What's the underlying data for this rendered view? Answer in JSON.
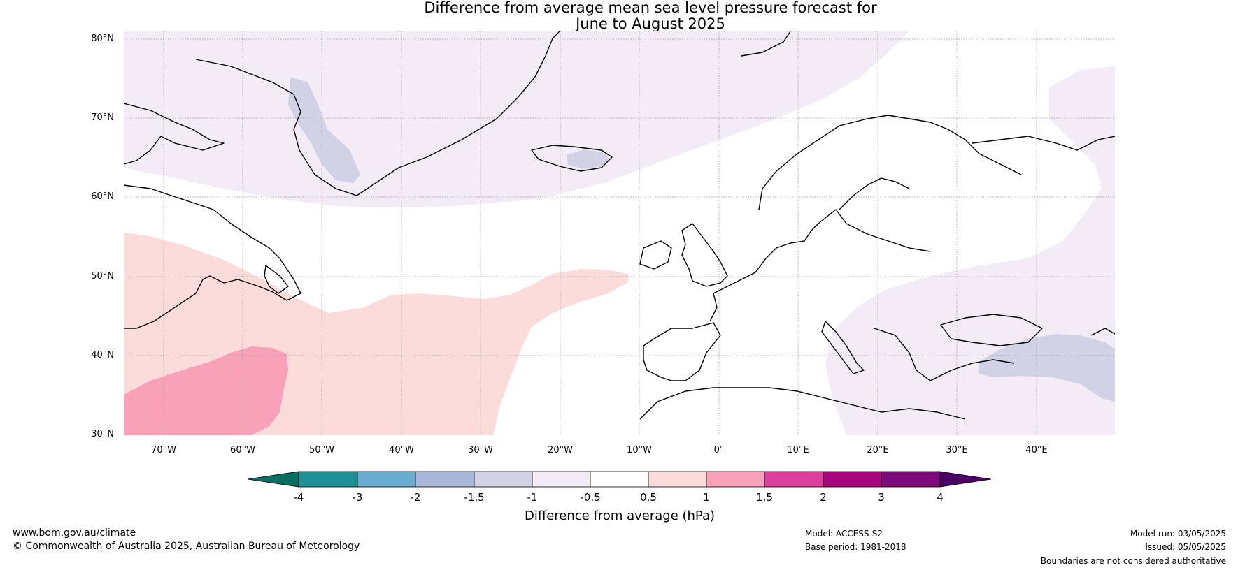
{
  "title_line1": "Difference from average mean sea level pressure forecast for",
  "title_line2": "June to August 2025",
  "lat_labels": [
    "80°N",
    "70°N",
    "60°N",
    "50°N",
    "40°N",
    "30°N"
  ],
  "lon_labels": [
    "70°W",
    "60°W",
    "50°W",
    "40°W",
    "30°W",
    "20°W",
    "10°W",
    "0°",
    "10°E",
    "20°E",
    "30°E",
    "40°E"
  ],
  "colorbar": {
    "label": "Difference from average (hPa)",
    "ticks": [
      "-4",
      "-3",
      "-2",
      "-1.5",
      "-1",
      "-0.5",
      "0.5",
      "1",
      "1.5",
      "2",
      "3",
      "4"
    ],
    "colors": [
      "#0b6e63",
      "#1e9096",
      "#6aabd1",
      "#a8b8d9",
      "#d1d2e6",
      "#f3ebf5",
      "#ffffff",
      "#fbdcdb",
      "#f8a1b9",
      "#dd3f9f",
      "#a8067f",
      "#7d0b7b",
      "#4b0066"
    ]
  },
  "footer": {
    "website": "www.bom.gov.au/climate",
    "copyright": "© Commonwealth of Australia 2025, Australian Bureau of Meteorology",
    "model": "Model: ACCESS-S2",
    "base_period": "Base period: 1981-2018",
    "model_run": "Model run: 03/05/2025",
    "issued": "Issued: 05/05/2025",
    "disclaimer": "Boundaries are not considered authoritative"
  }
}
